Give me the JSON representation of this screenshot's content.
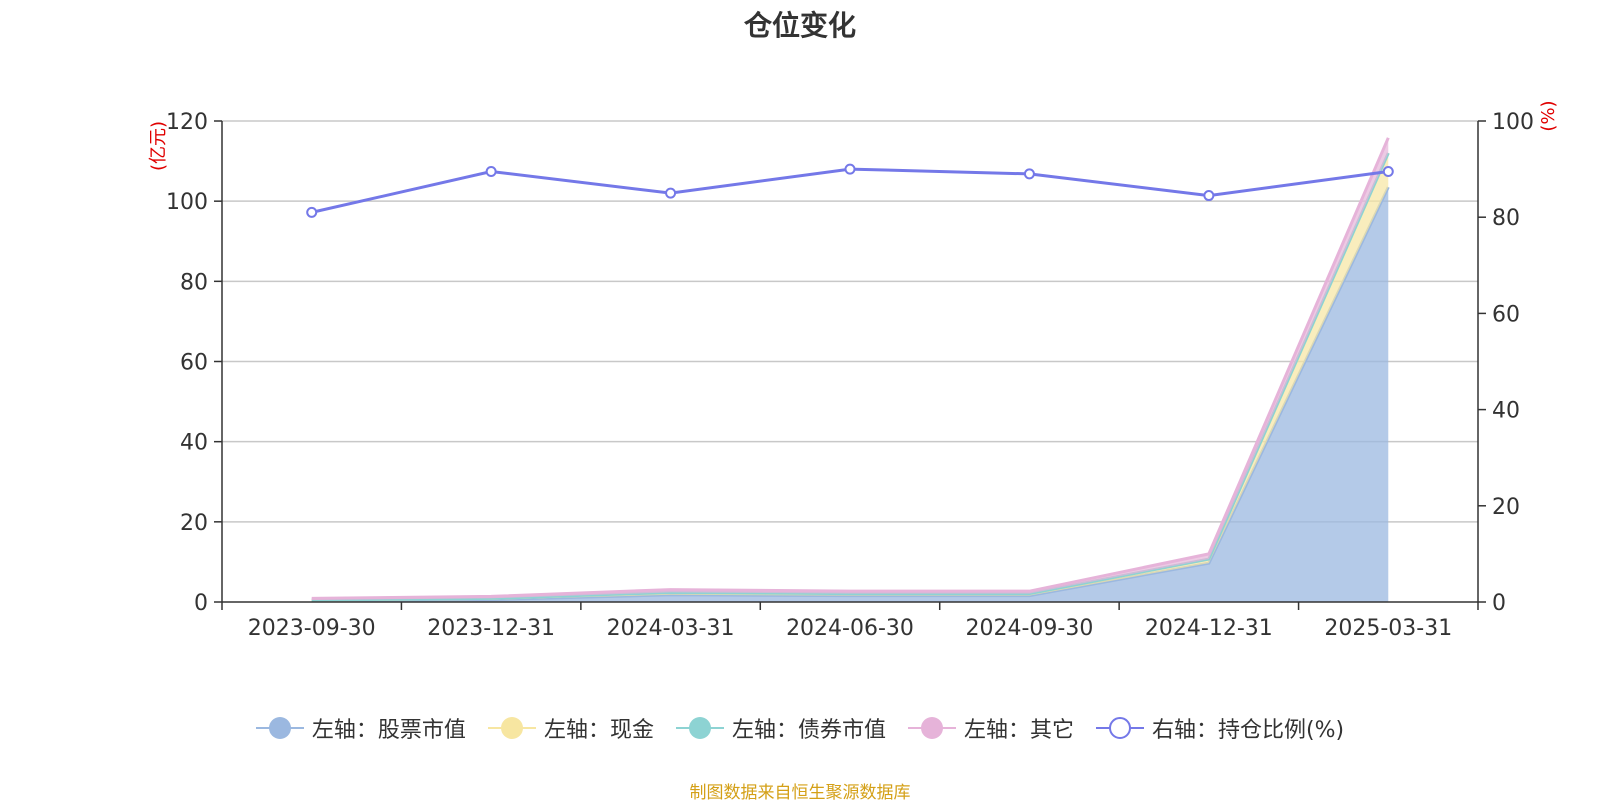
{
  "title": "仓位变化",
  "source_note": "制图数据来自恒生聚源数据库",
  "chart_data": {
    "type": "area",
    "categories": [
      "2023-09-30",
      "2023-12-31",
      "2024-03-31",
      "2024-06-30",
      "2024-09-30",
      "2024-12-31",
      "2025-03-31"
    ],
    "left_axis": {
      "label": "(亿元)",
      "ylim": [
        0,
        120
      ],
      "ticks": [
        0,
        20,
        40,
        60,
        80,
        100,
        120
      ]
    },
    "right_axis": {
      "label": "(%)",
      "ylim": [
        0,
        100
      ],
      "ticks": [
        0,
        20,
        40,
        60,
        80,
        100
      ]
    },
    "stacked": true,
    "series": [
      {
        "name": "左轴：股票市值",
        "axis": "left",
        "color": "#9bb8e0",
        "values": [
          0.3,
          0.6,
          1.8,
          1.6,
          1.6,
          9.7,
          103.5
        ]
      },
      {
        "name": "左轴：现金",
        "axis": "left",
        "color": "#f7e6a1",
        "values": [
          0.2,
          0.3,
          0.6,
          0.5,
          0.5,
          1.0,
          8.5
        ]
      },
      {
        "name": "左轴：债券市值",
        "axis": "left",
        "color": "#8dd3d3",
        "values": [
          0.0,
          0.0,
          0.0,
          0.0,
          0.0,
          0.0,
          0.0
        ]
      },
      {
        "name": "左轴：其它",
        "axis": "left",
        "color": "#e6b3d9",
        "values": [
          0.4,
          0.5,
          0.7,
          0.6,
          0.6,
          1.3,
          3.8
        ]
      },
      {
        "name": "右轴：持仓比例(%)",
        "axis": "right",
        "color": "#7478e8",
        "values": [
          81.0,
          89.5,
          85.0,
          90.0,
          89.0,
          84.5,
          89.5
        ]
      }
    ],
    "grid": true,
    "legend_position": "bottom"
  }
}
